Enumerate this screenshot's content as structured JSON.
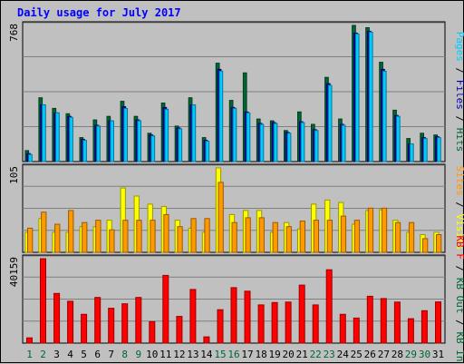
{
  "chart_data": {
    "title": "Daily usage for July 2017",
    "days": [
      "1",
      "2",
      "3",
      "4",
      "5",
      "6",
      "7",
      "8",
      "9",
      "10",
      "11",
      "12",
      "13",
      "14",
      "15",
      "16",
      "17",
      "18",
      "19",
      "20",
      "21",
      "22",
      "23",
      "24",
      "25",
      "26",
      "27",
      "28",
      "29",
      "30",
      "31"
    ],
    "weekend_days": [
      "1",
      "2",
      "8",
      "9",
      "15",
      "16",
      "22",
      "23",
      "29",
      "30"
    ],
    "panels": [
      {
        "type": "bar",
        "max_label": "768",
        "ylim": [
          0,
          768
        ],
        "series": [
          {
            "name": "Hits",
            "color": "#006633",
            "values": [
              62,
              360,
              300,
              270,
              135,
              235,
              255,
              340,
              255,
              160,
              330,
              200,
              360,
              135,
              555,
              345,
              500,
              240,
              230,
              175,
              280,
              210,
              475,
              240,
              768,
              755,
              560,
              290,
              130,
              160,
              150
            ]
          },
          {
            "name": "Files",
            "color": "#0000aa",
            "values": [
              45,
              320,
              275,
              255,
              125,
              205,
              230,
              310,
              235,
              150,
              305,
              190,
              320,
              120,
              520,
              305,
              280,
              215,
              220,
              165,
              225,
              180,
              440,
              210,
              725,
              735,
              520,
              260,
              100,
              135,
              140
            ]
          },
          {
            "name": "Pages",
            "color": "#00ccff",
            "values": [
              40,
              320,
              275,
              250,
              120,
              200,
              230,
              300,
              230,
              145,
              295,
              185,
              320,
              115,
              510,
              300,
              275,
              210,
              215,
              160,
              220,
              175,
              430,
              205,
              720,
              730,
              510,
              255,
              100,
              130,
              135
            ]
          }
        ],
        "legend": "right-vertical"
      },
      {
        "type": "bar",
        "max_label": "105",
        "ylim": [
          0,
          105
        ],
        "series": [
          {
            "name": "Visits",
            "color": "#ffff00",
            "values": [
              25,
              42,
              25,
              25,
              32,
              32,
              40,
              80,
              70,
              60,
              57,
              40,
              30,
              25,
              105,
              47,
              52,
              52,
              25,
              37,
              29,
              60,
              65,
              62,
              35,
              52,
              53,
              40,
              25,
              22,
              25
            ]
          },
          {
            "name": "Sites",
            "color": "#ff9900",
            "values": [
              30,
              50,
              35,
              52,
              37,
              40,
              28,
              40,
              40,
              40,
              47,
              32,
              42,
              42,
              87,
              37,
              43,
              43,
              37,
              32,
              39,
              40,
              40,
              45,
              40,
              55,
              55,
              37,
              37,
              17,
              22
            ]
          }
        ],
        "legend": "right-vertical"
      },
      {
        "type": "bar",
        "max_label": "40159",
        "ylim": [
          0,
          40159
        ],
        "series": [
          {
            "name": "KB In",
            "color": "#006633",
            "values": [
              0,
              0,
              0,
              0,
              0,
              0,
              0,
              0,
              0,
              0,
              0,
              0,
              0,
              0,
              0,
              0,
              0,
              0,
              0,
              0,
              0,
              0,
              0,
              0,
              0,
              0,
              0,
              0,
              0,
              0,
              0
            ]
          },
          {
            "name": "KB Out",
            "color": "#006633",
            "values": [
              0,
              0,
              0,
              0,
              0,
              0,
              0,
              0,
              0,
              0,
              0,
              0,
              0,
              0,
              0,
              0,
              0,
              0,
              0,
              0,
              0,
              0,
              0,
              0,
              0,
              0,
              0,
              0,
              0,
              0,
              0
            ]
          },
          {
            "name": "KB F",
            "color": "#ff0000",
            "values": [
              2500,
              40159,
              23600,
              19900,
              13700,
              21700,
              16600,
              18700,
              21700,
              10200,
              32200,
              12700,
              25500,
              3000,
              15900,
              26400,
              24700,
              18200,
              19300,
              19500,
              27600,
              18200,
              34900,
              13700,
              11900,
              22300,
              21200,
              19500,
              11600,
              15400,
              19600
            ]
          }
        ],
        "legend": "right-vertical"
      }
    ],
    "legend_parts": [
      {
        "text": "Pages",
        "color": "#00ccff"
      },
      {
        "text": " / ",
        "color": "#000000"
      },
      {
        "text": "Files",
        "color": "#0000aa"
      },
      {
        "text": " / ",
        "color": "#000000"
      },
      {
        "text": "Hits",
        "color": "#006633"
      },
      {
        "text": "Sites",
        "color": "#ff9900"
      },
      {
        "text": " / ",
        "color": "#000000"
      },
      {
        "text": "Visits",
        "color": "#ffff00"
      },
      {
        "text": "KB F",
        "color": "#ff0000"
      },
      {
        "text": " / ",
        "color": "#000000"
      },
      {
        "text": "KB Out",
        "color": "#006633"
      },
      {
        "text": " / ",
        "color": "#000000"
      },
      {
        "text": "KB In",
        "color": "#006633"
      }
    ],
    "grid": true,
    "background": "#c0c0c0",
    "plot_background": "#c0c0c0"
  }
}
